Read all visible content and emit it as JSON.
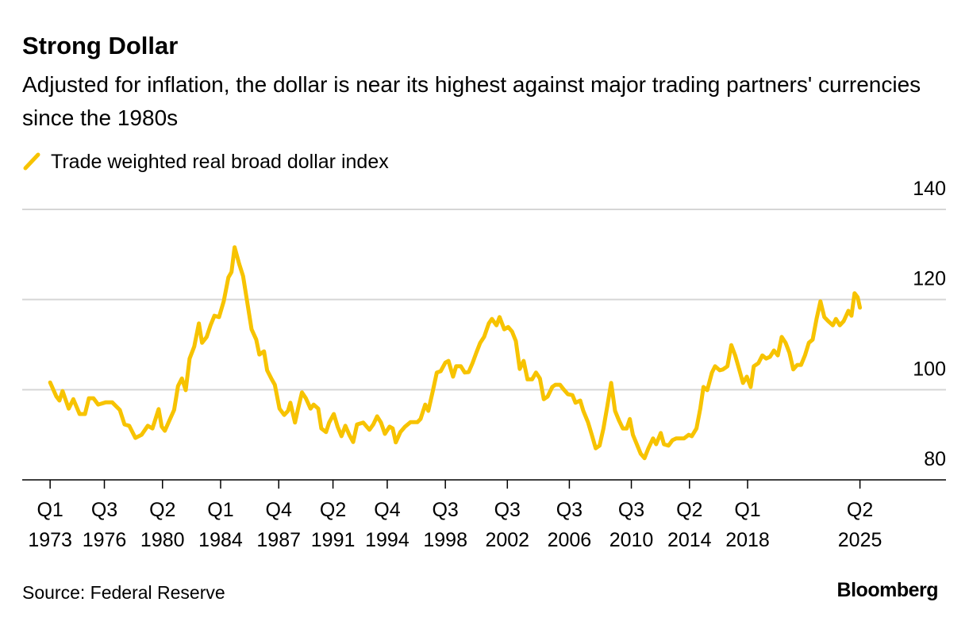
{
  "chart_data": {
    "type": "line",
    "title": "Strong Dollar",
    "subtitle": "Adjusted for inflation, the dollar is near its highest against major trading partners' currencies since the 1980s",
    "source": "Source: Federal Reserve",
    "brand": "Bloomberg",
    "xlim": [
      1971.2,
      2030.8
    ],
    "ylim": [
      80,
      140
    ],
    "yticks": [
      80,
      100,
      120,
      140
    ],
    "grid": true,
    "xticks": [
      {
        "value": 1973.0,
        "label": "Q1 1973"
      },
      {
        "value": 1976.5,
        "label": "Q3 1976"
      },
      {
        "value": 1980.25,
        "label": "Q2 1980"
      },
      {
        "value": 1984.0,
        "label": "Q1 1984"
      },
      {
        "value": 1987.75,
        "label": "Q4 1987"
      },
      {
        "value": 1991.25,
        "label": "Q2 1991"
      },
      {
        "value": 1994.75,
        "label": "Q4 1994"
      },
      {
        "value": 1998.5,
        "label": "Q3 1998"
      },
      {
        "value": 2002.5,
        "label": "Q3 2002"
      },
      {
        "value": 2006.5,
        "label": "Q3 2006"
      },
      {
        "value": 2010.5,
        "label": "Q3 2010"
      },
      {
        "value": 2014.25,
        "label": "Q2 2014"
      },
      {
        "value": 2018.0,
        "label": "Q1 2018"
      },
      {
        "value": 2025.25,
        "label": "Q2 2025"
      }
    ],
    "x": [
      1973.0,
      1973.4,
      1973.6,
      1973.8,
      1974.2,
      1974.5,
      1974.9,
      1975.25,
      1975.5,
      1975.8,
      1976.1,
      1976.6,
      1977.0,
      1977.5,
      1977.8,
      1978.1,
      1978.5,
      1978.9,
      1979.3,
      1979.6,
      1980.0,
      1980.2,
      1980.4,
      1980.7,
      1981.0,
      1981.25,
      1981.5,
      1981.75,
      1982.0,
      1982.3,
      1982.6,
      1982.8,
      1983.1,
      1983.35,
      1983.6,
      1983.9,
      1984.2,
      1984.5,
      1984.7,
      1984.9,
      1985.2,
      1985.45,
      1985.75,
      1986.0,
      1986.3,
      1986.5,
      1986.8,
      1987.0,
      1987.3,
      1987.5,
      1987.8,
      1988.1,
      1988.35,
      1988.5,
      1988.8,
      1989.0,
      1989.25,
      1989.5,
      1989.8,
      1990.0,
      1990.3,
      1990.5,
      1990.8,
      1991.0,
      1991.3,
      1991.55,
      1991.8,
      1992.05,
      1992.3,
      1992.55,
      1992.8,
      1993.2,
      1993.6,
      1993.85,
      1994.1,
      1994.35,
      1994.6,
      1994.9,
      1995.1,
      1995.3,
      1995.6,
      1995.9,
      1996.25,
      1996.7,
      1996.9,
      1997.2,
      1997.4,
      1997.7,
      1997.95,
      1998.2,
      1998.5,
      1998.7,
      1999.0,
      1999.2,
      1999.5,
      1999.75,
      2000.0,
      2000.25,
      2000.5,
      2000.75,
      2001.0,
      2001.3,
      2001.5,
      2001.8,
      2002.0,
      2002.3,
      2002.55,
      2002.8,
      2003.05,
      2003.3,
      2003.55,
      2003.8,
      2004.1,
      2004.35,
      2004.6,
      2004.85,
      2005.1,
      2005.4,
      2005.6,
      2005.9,
      2006.1,
      2006.4,
      2006.7,
      2006.9,
      2007.2,
      2007.4,
      2007.7,
      2007.95,
      2008.2,
      2008.45,
      2008.7,
      2008.95,
      2009.2,
      2009.45,
      2009.7,
      2009.95,
      2010.2,
      2010.4,
      2010.6,
      2010.85,
      2011.1,
      2011.35,
      2011.6,
      2011.9,
      2012.1,
      2012.4,
      2012.6,
      2012.9,
      2013.15,
      2013.4,
      2013.65,
      2013.9,
      2014.2,
      2014.4,
      2014.7,
      2014.95,
      2015.15,
      2015.4,
      2015.7,
      2015.9,
      2016.2,
      2016.4,
      2016.7,
      2016.95,
      2017.2,
      2017.45,
      2017.7,
      2017.95,
      2018.2,
      2018.4,
      2018.7,
      2018.95,
      2019.2,
      2019.45,
      2019.7,
      2019.95,
      2020.2,
      2020.45,
      2020.7,
      2020.95,
      2021.2,
      2021.45,
      2021.7,
      2021.95,
      2022.2,
      2022.45,
      2022.7,
      2022.95,
      2023.2,
      2023.5,
      2023.7,
      2023.95,
      2024.2,
      2024.5,
      2024.7,
      2024.9,
      2025.1,
      2025.25
    ],
    "series": [
      {
        "name": "Trade weighted real broad dollar index",
        "color": "#f7c300",
        "values": [
          101.6,
          98.5,
          97.6,
          99.7,
          95.8,
          97.9,
          94.6,
          94.6,
          98.1,
          98.1,
          96.7,
          97.2,
          97.2,
          95.5,
          92.3,
          92.0,
          89.3,
          90.0,
          92.0,
          91.4,
          95.7,
          91.8,
          90.9,
          93.2,
          95.5,
          100.8,
          102.5,
          99.9,
          106.9,
          109.6,
          114.7,
          110.4,
          111.7,
          114.3,
          116.4,
          116.1,
          119.6,
          124.9,
          126.1,
          131.6,
          127.9,
          125.2,
          118.7,
          113.4,
          111.1,
          107.8,
          108.5,
          104.3,
          102.3,
          101.1,
          95.8,
          94.4,
          95.3,
          97.1,
          92.7,
          95.8,
          99.4,
          98.1,
          95.8,
          96.7,
          95.8,
          91.4,
          90.6,
          92.7,
          94.6,
          91.8,
          89.7,
          92.0,
          90.0,
          88.4,
          92.3,
          92.7,
          91.1,
          92.3,
          94.1,
          92.7,
          90.2,
          91.8,
          91.4,
          88.3,
          90.6,
          91.8,
          92.8,
          92.8,
          93.5,
          96.7,
          95.3,
          99.9,
          103.8,
          104.1,
          106.0,
          106.4,
          102.9,
          105.2,
          105.2,
          103.8,
          103.9,
          105.9,
          108.2,
          110.4,
          111.7,
          114.7,
          115.7,
          114.3,
          116.1,
          113.4,
          113.9,
          112.9,
          110.8,
          104.6,
          106.4,
          102.3,
          102.3,
          103.8,
          102.5,
          97.9,
          98.5,
          100.6,
          101.1,
          101.1,
          100.2,
          99.0,
          98.8,
          97.1,
          97.6,
          95.3,
          92.8,
          90.0,
          87.0,
          87.6,
          91.4,
          96.4,
          101.5,
          95.3,
          93.2,
          91.4,
          91.4,
          93.5,
          90.0,
          87.9,
          85.8,
          84.8,
          87.0,
          89.2,
          87.9,
          90.4,
          87.9,
          87.6,
          88.8,
          89.2,
          89.2,
          89.2,
          90.0,
          89.7,
          91.4,
          95.8,
          100.6,
          99.9,
          103.8,
          105.2,
          104.3,
          104.5,
          105.2,
          109.9,
          107.6,
          104.6,
          101.5,
          102.9,
          100.6,
          105.2,
          105.9,
          107.6,
          106.9,
          107.3,
          108.7,
          107.6,
          111.7,
          110.4,
          108.2,
          104.5,
          105.5,
          105.5,
          107.6,
          110.4,
          111.1,
          115.7,
          119.6,
          116.1,
          115.2,
          114.3,
          115.7,
          114.3,
          115.2,
          117.5,
          116.4,
          121.4,
          120.5,
          118.2
        ]
      }
    ]
  }
}
